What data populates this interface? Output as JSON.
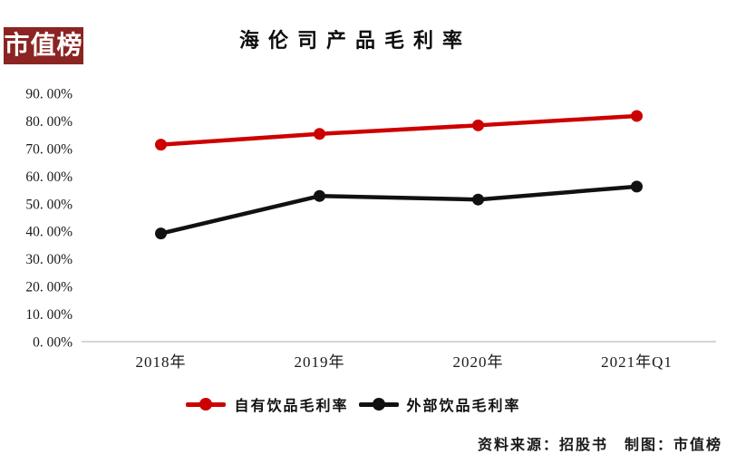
{
  "logo": {
    "text": "市值榜",
    "bg_color": "#8B2422",
    "text_color": "#ffffff"
  },
  "source_note": "资料来源：招股书　制图：市值榜",
  "axis_color": "#c9c9c9",
  "chart_data": {
    "type": "line",
    "title": "海伦司产品毛利率",
    "categories": [
      "2018年",
      "2019年",
      "2020年",
      "2021年Q1"
    ],
    "series": [
      {
        "name": "自有饮品毛利率",
        "color": "#CC0000",
        "values": [
          71.4,
          75.3,
          78.4,
          81.8
        ]
      },
      {
        "name": "外部饮品毛利率",
        "color": "#111111",
        "values": [
          39.2,
          52.8,
          51.5,
          56.2
        ]
      }
    ],
    "ylim": [
      0,
      90
    ],
    "ytick_step": 10,
    "ytick_labels": [
      "0. 00%",
      "10. 00%",
      "20. 00%",
      "30. 00%",
      "40. 00%",
      "50. 00%",
      "60. 00%",
      "70. 00%",
      "80. 00%",
      "90. 00%"
    ],
    "grid": false,
    "legend_position": "bottom"
  }
}
